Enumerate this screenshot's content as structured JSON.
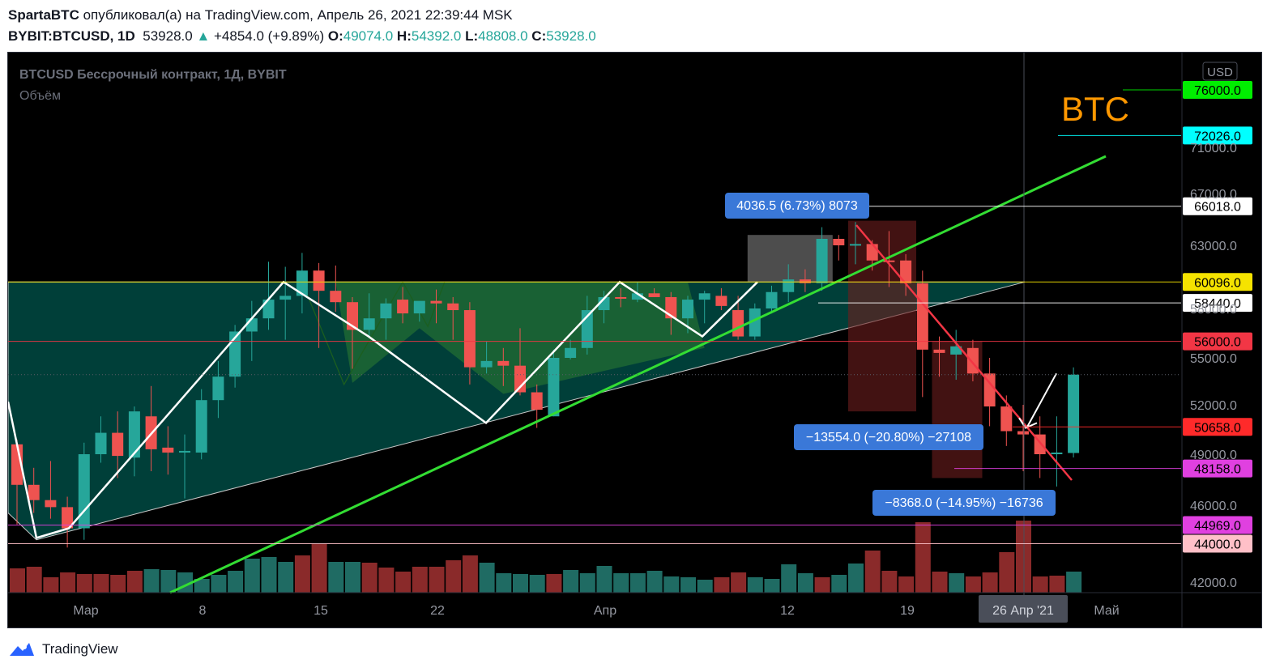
{
  "header": {
    "author": "SpartaBTC",
    "published_text": "опубликовал(а) на TradingView.com, Апрель 26, 2021 22:39:44 MSK",
    "symbol": "BYBIT:BTCUSD, 1D",
    "last": "53928.0",
    "change": "+4854.0 (+9.89%)",
    "o_label": "O:",
    "o": "49074.0",
    "h_label": "H:",
    "h": "54392.0",
    "l_label": "L:",
    "l": "48808.0",
    "c_label": "C:",
    "c": "53928.0"
  },
  "chart_header": {
    "title": "BTCUSD Бессрочный контракт, 1Д, BYBIT",
    "volume_label": "Объём"
  },
  "currency": "USD",
  "btc_label": "BTC",
  "x_ticks": [
    "Мар",
    "8",
    "15",
    "22",
    "Апр",
    "12",
    "19",
    "26",
    "Май"
  ],
  "cursor_date": "26 Апр '21",
  "footer": {
    "brand": "TradingView"
  },
  "colors": {
    "up": "#26a69a",
    "down": "#ef5350",
    "btc_label": "#ff9800",
    "support_trend": "#33dd33",
    "resistance_trend": "#f23645"
  },
  "measures": [
    {
      "text": "4036.5 (6.73%) 8073"
    },
    {
      "text": "−13554.0 (−20.80%) −27108"
    },
    {
      "text": "−8368.0 (−14.95%) −16736"
    }
  ],
  "chart_data": {
    "type": "candlestick",
    "title": "BTCUSD Бессрочный контракт, 1Д, BYBIT",
    "y_axis_ticks": [
      42000,
      46000,
      49000,
      52000,
      55000,
      58000,
      63000,
      67000,
      71000
    ],
    "y_axis_tick_labels": [
      "42000.0",
      "46000.0",
      "49000.0",
      "52000.0",
      "55000.0",
      "58000.0",
      "63000.0",
      "67000.0",
      "71000.0"
    ],
    "x_axis_ticks": [
      "Мар",
      "8",
      "15",
      "22",
      "Апр",
      "12",
      "19",
      "26",
      "Май"
    ],
    "price_levels": [
      {
        "value": 76000,
        "label": "76000.0",
        "color": "#00ee00"
      },
      {
        "value": 72026,
        "label": "72026.0",
        "color": "#00ffff"
      },
      {
        "value": 66018,
        "label": "66018.0",
        "color": "#ffffff"
      },
      {
        "value": 60096,
        "label": "60096.0",
        "color": "#f5e300"
      },
      {
        "value": 58440,
        "label": "58440.0",
        "color": "#ffffff"
      },
      {
        "value": 56000,
        "label": "56000.0",
        "color": "#f23645"
      },
      {
        "value": 50658,
        "label": "50658.0",
        "color": "#ff2a2a"
      },
      {
        "value": 48158,
        "label": "48158.0",
        "color": "#e040e0"
      },
      {
        "value": 44969,
        "label": "44969.0",
        "color": "#e040e0"
      },
      {
        "value": 44000,
        "label": "44000.0",
        "color": "#ffc0c8"
      }
    ],
    "candles": [
      [
        49600,
        49900,
        45000,
        47200
      ],
      [
        47200,
        48200,
        45600,
        46300
      ],
      [
        46300,
        48600,
        45300,
        45900
      ],
      [
        45900,
        46500,
        43800,
        44800
      ],
      [
        44800,
        49700,
        44200,
        49000
      ],
      [
        49000,
        51300,
        48500,
        50300
      ],
      [
        50300,
        51600,
        47600,
        48900
      ],
      [
        48800,
        51900,
        47700,
        51600
      ],
      [
        51300,
        53200,
        48000,
        49300
      ],
      [
        49400,
        50700,
        47800,
        49100
      ],
      [
        49100,
        50200,
        46400,
        49200
      ],
      [
        49100,
        53000,
        48700,
        52300
      ],
      [
        52300,
        54800,
        51200,
        53800
      ],
      [
        53800,
        57000,
        53100,
        56600
      ],
      [
        56600,
        58600,
        54800,
        57400
      ],
      [
        57400,
        61700,
        56700,
        58700
      ],
      [
        58700,
        61300,
        56100,
        59000
      ],
      [
        59000,
        62400,
        57700,
        61000
      ],
      [
        61000,
        61600,
        55600,
        59400
      ],
      [
        59400,
        61400,
        57800,
        58500
      ],
      [
        58500,
        58900,
        54300,
        56700
      ],
      [
        56700,
        59200,
        56300,
        57400
      ],
      [
        57400,
        58800,
        56100,
        58400
      ],
      [
        58700,
        59700,
        57100,
        57700
      ],
      [
        57700,
        58500,
        57200,
        58600
      ],
      [
        58600,
        59500,
        57100,
        58400
      ],
      [
        58400,
        58900,
        56100,
        57900
      ],
      [
        57900,
        58500,
        53300,
        54400
      ],
      [
        54400,
        56000,
        54000,
        54800
      ],
      [
        54800,
        55600,
        53200,
        54500
      ],
      [
        54500,
        56800,
        52600,
        52800
      ],
      [
        52800,
        53300,
        50600,
        51700
      ],
      [
        51300,
        55500,
        51300,
        55000
      ],
      [
        55000,
        56100,
        54900,
        55600
      ],
      [
        55600,
        59000,
        55200,
        57900
      ],
      [
        57900,
        59400,
        57100,
        58900
      ],
      [
        58900,
        59600,
        58100,
        58800
      ],
      [
        58700,
        60100,
        58500,
        59200
      ],
      [
        59200,
        59600,
        58900,
        58900
      ],
      [
        58900,
        59300,
        56400,
        57400
      ],
      [
        57400,
        59000,
        56500,
        58700
      ],
      [
        58700,
        59400,
        57100,
        59200
      ],
      [
        59000,
        59600,
        57900,
        58200
      ],
      [
        57900,
        59000,
        56100,
        56300
      ],
      [
        56300,
        58400,
        56100,
        58000
      ],
      [
        58000,
        59800,
        57700,
        59300
      ],
      [
        59300,
        61500,
        58500,
        60300
      ],
      [
        60300,
        61100,
        59300,
        60000
      ],
      [
        60000,
        64400,
        59400,
        63500
      ],
      [
        63500,
        63800,
        61800,
        63000
      ],
      [
        63000,
        64800,
        61500,
        63100
      ],
      [
        63100,
        63400,
        61000,
        61800
      ],
      [
        61800,
        64100,
        59700,
        61700
      ],
      [
        61800,
        62300,
        59000,
        60000
      ],
      [
        60000,
        61000,
        52500,
        55500
      ],
      [
        55500,
        56300,
        53800,
        55300
      ],
      [
        55200,
        56700,
        53600,
        55700
      ],
      [
        55600,
        56100,
        53500,
        54000
      ],
      [
        54000,
        55000,
        50700,
        51900
      ],
      [
        51900,
        52600,
        49500,
        50400
      ],
      [
        50400,
        52000,
        48000,
        50200
      ],
      [
        50200,
        51300,
        47600,
        49000
      ],
      [
        49000,
        51300,
        47100,
        49100
      ],
      [
        49074,
        54392,
        48808,
        53928
      ]
    ],
    "volumes": [
      [
        30,
        0
      ],
      [
        32,
        0
      ],
      [
        19,
        0
      ],
      [
        25,
        0
      ],
      [
        23,
        0
      ],
      [
        23,
        0
      ],
      [
        22,
        0
      ],
      [
        27,
        0
      ],
      [
        29,
        1
      ],
      [
        28,
        1
      ],
      [
        25,
        1
      ],
      [
        17,
        1
      ],
      [
        22,
        1
      ],
      [
        27,
        1
      ],
      [
        42,
        1
      ],
      [
        44,
        1
      ],
      [
        38,
        1
      ],
      [
        46,
        0
      ],
      [
        60,
        0
      ],
      [
        38,
        1
      ],
      [
        38,
        1
      ],
      [
        37,
        0
      ],
      [
        31,
        0
      ],
      [
        26,
        0
      ],
      [
        32,
        0
      ],
      [
        32,
        0
      ],
      [
        40,
        0
      ],
      [
        46,
        0
      ],
      [
        37,
        1
      ],
      [
        24,
        1
      ],
      [
        23,
        1
      ],
      [
        22,
        1
      ],
      [
        23,
        0
      ],
      [
        28,
        1
      ],
      [
        24,
        1
      ],
      [
        33,
        1
      ],
      [
        24,
        1
      ],
      [
        24,
        1
      ],
      [
        27,
        1
      ],
      [
        20,
        1
      ],
      [
        19,
        1
      ],
      [
        16,
        1
      ],
      [
        19,
        0
      ],
      [
        25,
        0
      ],
      [
        19,
        1
      ],
      [
        17,
        1
      ],
      [
        35,
        1
      ],
      [
        24,
        1
      ],
      [
        19,
        0
      ],
      [
        22,
        1
      ],
      [
        36,
        1
      ],
      [
        52,
        0
      ],
      [
        27,
        0
      ],
      [
        20,
        0
      ],
      [
        87,
        0
      ],
      [
        26,
        0
      ],
      [
        24,
        1
      ],
      [
        20,
        0
      ],
      [
        25,
        0
      ],
      [
        50,
        0
      ],
      [
        89,
        0
      ],
      [
        20,
        0
      ],
      [
        21,
        0
      ],
      [
        26,
        1
      ]
    ],
    "y_unit": "USD"
  }
}
